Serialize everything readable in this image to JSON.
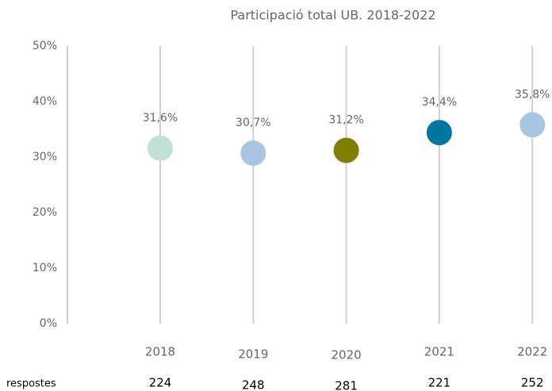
{
  "chart_data": {
    "type": "dot",
    "title": "Participació total UB. 2018-2022",
    "categories": [
      "2018",
      "2019",
      "2020",
      "2021",
      "2022"
    ],
    "values": [
      31.6,
      30.7,
      31.2,
      34.4,
      35.8
    ],
    "value_labels": [
      "31,6%",
      "30,7%",
      "31,2%",
      "34,4%",
      "35,8%"
    ],
    "colors": [
      "#c3e0d6",
      "#a8c5e2",
      "#7f7f00",
      "#0077a1",
      "#a8c5e2"
    ],
    "ylim": [
      0,
      50
    ],
    "yticks": [
      {
        "value": 0,
        "label": "0%"
      },
      {
        "value": 10,
        "label": "10%"
      },
      {
        "value": 20,
        "label": "20%"
      },
      {
        "value": 30,
        "label": "30%"
      },
      {
        "value": 40,
        "label": "40%"
      },
      {
        "value": 50,
        "label": "50%"
      }
    ],
    "grid": false,
    "responses": {
      "label": "respostes",
      "values": [
        224,
        248,
        281,
        221,
        252
      ]
    }
  }
}
